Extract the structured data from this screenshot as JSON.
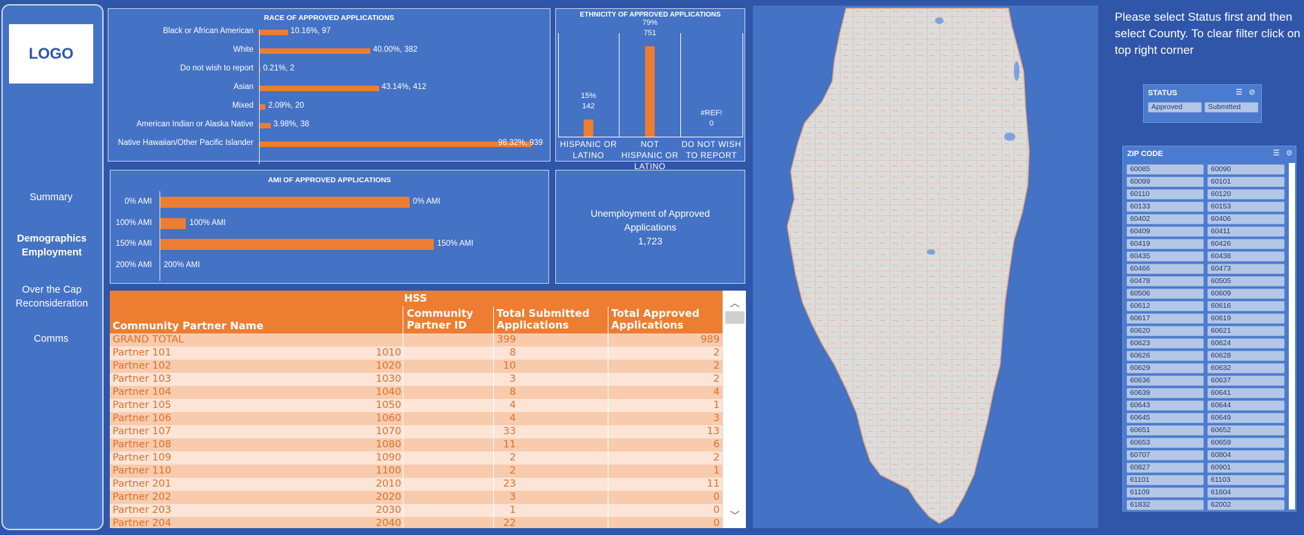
{
  "logo": "LOGO",
  "nav": [
    "Summary",
    "Demographics Employment",
    "Over the Cap Reconsideration",
    "Comms"
  ],
  "race": {
    "title": "RACE OF APPROVED  APPLICATIONS",
    "items": [
      {
        "label": "Black or African American",
        "pct": 10.16,
        "text": "10.16%,  97"
      },
      {
        "label": "White",
        "pct": 40.0,
        "text": "40.00%,  382"
      },
      {
        "label": "Do not wish to report",
        "pct": 0.21,
        "text": "0.21%,  2"
      },
      {
        "label": "Asian",
        "pct": 43.14,
        "text": "43.14%,  412"
      },
      {
        "label": "Mixed",
        "pct": 2.09,
        "text": "2.09%,  20"
      },
      {
        "label": "American Indian or Alaska Native",
        "pct": 3.98,
        "text": "3.98%,  38"
      },
      {
        "label": "Native Hawaiian/Other Pacific Islander",
        "pct": 98.32,
        "text": "98.32%,  939"
      }
    ]
  },
  "ethnicity": {
    "title": "ETHNICITY OF APPROVED APPLICATIONS",
    "items": [
      {
        "label": "HISPANIC OR LATINO",
        "pct_text": "15%",
        "count": "142",
        "value": 142
      },
      {
        "label": "NOT HISPANIC OR LATINO",
        "pct_text": "79%",
        "count": "751",
        "value": 751
      },
      {
        "label": "DO NOT WISH TO REPORT",
        "pct_text": "#REF!",
        "count": "0",
        "value": 0
      }
    ]
  },
  "ami": {
    "title": "AMI OF APPROVED APPLICATIONS",
    "items": [
      {
        "label": "0% AMI",
        "value_label": "0% AMI",
        "value": 82
      },
      {
        "label": "100% AMI",
        "value_label": "100% AMI",
        "value": 8.5
      },
      {
        "label": "150% AMI",
        "value_label": "150% AMI",
        "value": 90
      },
      {
        "label": "200% AMI",
        "value_label": "200% AMI",
        "value": 0
      }
    ]
  },
  "unemployment": {
    "title": "Unemployment of Approved Applications",
    "value": "1,723"
  },
  "table": {
    "group": "HSS",
    "headers": [
      "Community Partner Name",
      "Community Partner ID",
      "Total Submitted Applications",
      "Total Approved Applications"
    ],
    "rows": [
      [
        "GRAND TOTAL",
        "",
        "399",
        "989"
      ],
      [
        "Partner 101",
        "1010",
        "8",
        "2"
      ],
      [
        "Partner 102",
        "1020",
        "10",
        "2"
      ],
      [
        "Partner 103",
        "1030",
        "3",
        "2"
      ],
      [
        "Partner 104",
        "1040",
        "8",
        "4"
      ],
      [
        "Partner 105",
        "1050",
        "4",
        "1"
      ],
      [
        "Partner 106",
        "1060",
        "4",
        "3"
      ],
      [
        "Partner 107",
        "1070",
        "33",
        "13"
      ],
      [
        "Partner 108",
        "1080",
        "11",
        "6"
      ],
      [
        "Partner 109",
        "1090",
        "2",
        "2"
      ],
      [
        "Partner 110",
        "1100",
        "2",
        "1"
      ],
      [
        "Partner 201",
        "2010",
        "23",
        "11"
      ],
      [
        "Partner 202",
        "2020",
        "3",
        "0"
      ],
      [
        "Partner 203",
        "2030",
        "1",
        "0"
      ],
      [
        "Partner 204",
        "2040",
        "22",
        "0"
      ]
    ]
  },
  "instructions": "Please select Status first and then select County.  To clear filter click on top right corner",
  "status": {
    "title": "STATUS",
    "options": [
      "Approved",
      "Submitted"
    ]
  },
  "zip": {
    "title": "ZIP CODE",
    "codes": [
      "60085",
      "60090",
      "60099",
      "60101",
      "60110",
      "60120",
      "60133",
      "60153",
      "60402",
      "60406",
      "60409",
      "60411",
      "60419",
      "60426",
      "60435",
      "60438",
      "60466",
      "60473",
      "60478",
      "60505",
      "60506",
      "60609",
      "60612",
      "60616",
      "60617",
      "60619",
      "60620",
      "60621",
      "60623",
      "60624",
      "60626",
      "60628",
      "60629",
      "60632",
      "60636",
      "60637",
      "60639",
      "60641",
      "60643",
      "60644",
      "60645",
      "60649",
      "60651",
      "60652",
      "60653",
      "60659",
      "60707",
      "60804",
      "60827",
      "60901",
      "61101",
      "61103",
      "61109",
      "61604",
      "61832",
      "62002"
    ]
  },
  "colors": {
    "bar": "#ed7d31",
    "panel": "#4472c4",
    "background": "#2f56a8",
    "row_dark": "#f8cbad",
    "row_light": "#fce4d6"
  }
}
